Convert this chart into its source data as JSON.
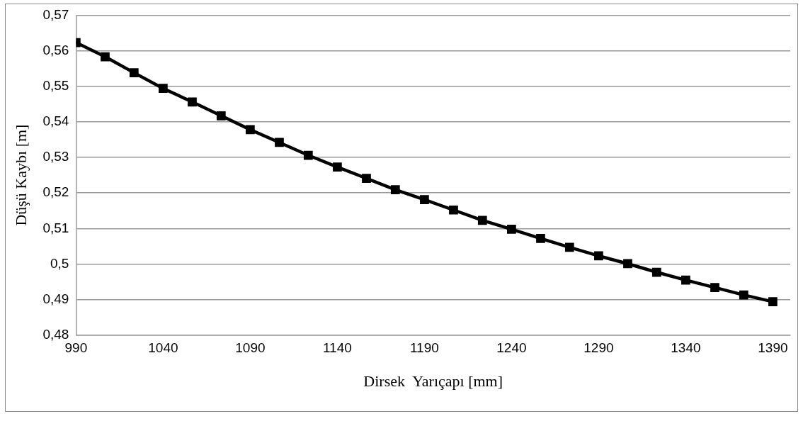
{
  "chart_data": {
    "type": "line",
    "xlabel": "Dirsek  Yarıçapı [mm]",
    "ylabel": "Düşü Kaybı [m]",
    "series": [
      {
        "color": "#000000",
        "x": [
          990,
          1006.7,
          1023.3,
          1040,
          1056.7,
          1073.3,
          1090,
          1106.7,
          1123.3,
          1140,
          1156.7,
          1173.3,
          1190,
          1206.7,
          1223.3,
          1240,
          1256.7,
          1273.3,
          1290,
          1306.7,
          1323.3,
          1340,
          1356.7,
          1373.3,
          1390
        ],
        "values": [
          0.5623,
          0.5583,
          0.5538,
          0.5494,
          0.5456,
          0.5417,
          0.5378,
          0.5342,
          0.5306,
          0.5273,
          0.5241,
          0.5209,
          0.5181,
          0.5152,
          0.5123,
          0.5098,
          0.5072,
          0.5047,
          0.5023,
          0.5001,
          0.4977,
          0.4955,
          0.4934,
          0.4913,
          0.4894
        ]
      }
    ],
    "xlim": [
      990,
      1400
    ],
    "xticks": [
      990,
      1040,
      1090,
      1140,
      1190,
      1240,
      1290,
      1340,
      1390
    ],
    "ylim": [
      0.48,
      0.57
    ],
    "yticks": [
      {
        "value": 0.48,
        "label": "0,48"
      },
      {
        "value": 0.49,
        "label": "0,49"
      },
      {
        "value": 0.5,
        "label": "0,5"
      },
      {
        "value": 0.51,
        "label": "0,51"
      },
      {
        "value": 0.52,
        "label": "0,52"
      },
      {
        "value": 0.53,
        "label": "0,53"
      },
      {
        "value": 0.54,
        "label": "0,54"
      },
      {
        "value": 0.55,
        "label": "0,55"
      },
      {
        "value": 0.56,
        "label": "0,56"
      },
      {
        "value": 0.57,
        "label": "0,57"
      }
    ],
    "grid": "y",
    "legend": false,
    "marker": "square",
    "line_style": "solid"
  }
}
